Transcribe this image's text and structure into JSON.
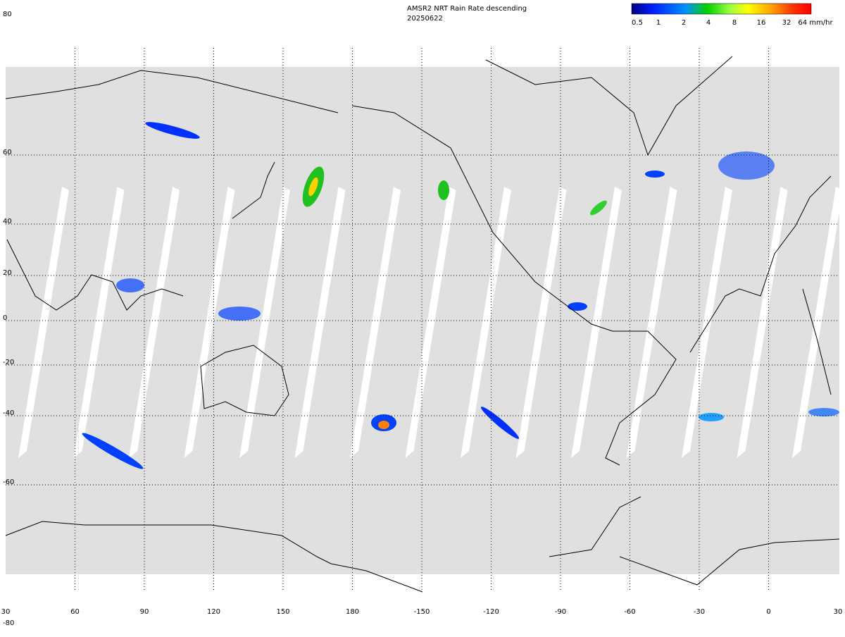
{
  "header": {
    "title": "AMSR2 NRT Rain Rate descending",
    "date": "20250622"
  },
  "colorbar": {
    "labels": [
      "0.5",
      "1",
      "2",
      "4",
      "8",
      "16",
      "32",
      "64 mm/hr"
    ]
  },
  "map": {
    "lon_labels": [
      "30",
      "60",
      "90",
      "120",
      "150",
      "180",
      "-150",
      "-120",
      "-90",
      "-60",
      "-30",
      "0",
      "30"
    ],
    "lat_labels": [
      "80",
      "60",
      "40",
      "20",
      "0",
      "-20",
      "-40",
      "-60",
      "-80"
    ]
  }
}
